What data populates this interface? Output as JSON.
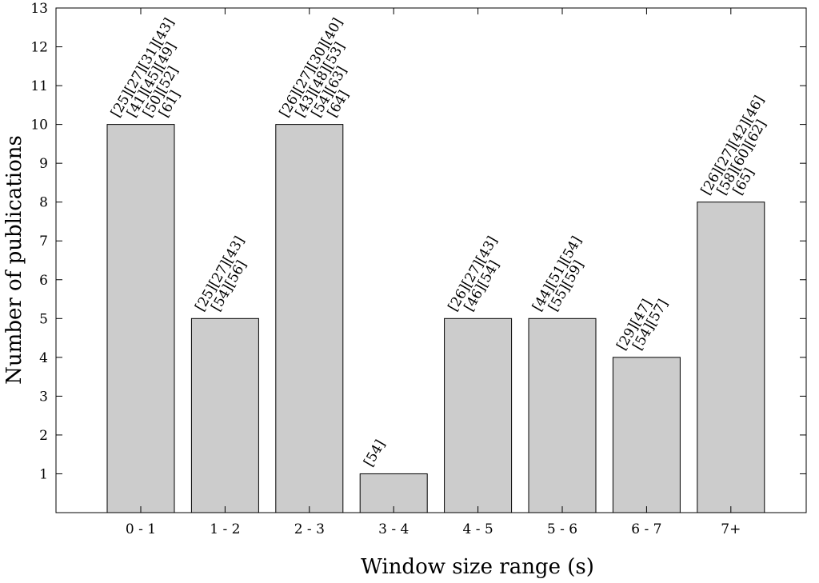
{
  "chart_data": {
    "type": "bar",
    "xlabel": "Window size range (s)",
    "ylabel": "Number of publications",
    "ylim": [
      0,
      13
    ],
    "yticks": [
      1,
      2,
      3,
      4,
      5,
      6,
      7,
      8,
      9,
      10,
      11,
      12,
      13
    ],
    "grid": false,
    "legend": "none",
    "bar_color": "#cccccc",
    "categories": [
      "0 - 1",
      "1 - 2",
      "2 - 3",
      "3 - 4",
      "4 - 5",
      "5 - 6",
      "6 - 7",
      "7+"
    ],
    "values": [
      10,
      5,
      10,
      1,
      5,
      5,
      4,
      8
    ],
    "annotations": [
      [
        "[25][27][31][43]",
        "[41][45][49]",
        "[50][52]",
        "[61]"
      ],
      [
        "[25][27][43]",
        "[54][56]"
      ],
      [
        "[26][27][30][40]",
        "[43][48][53]",
        "[54][63]",
        "[64]"
      ],
      [
        "[54]"
      ],
      [
        "[26][27][43]",
        "[46][54]"
      ],
      [
        "[44][51][54]",
        "[55][59]"
      ],
      [
        "[29][47]",
        "[54][57]"
      ],
      [
        "[26][27][42][46]",
        "[58][60][62]",
        "[65]"
      ]
    ]
  }
}
